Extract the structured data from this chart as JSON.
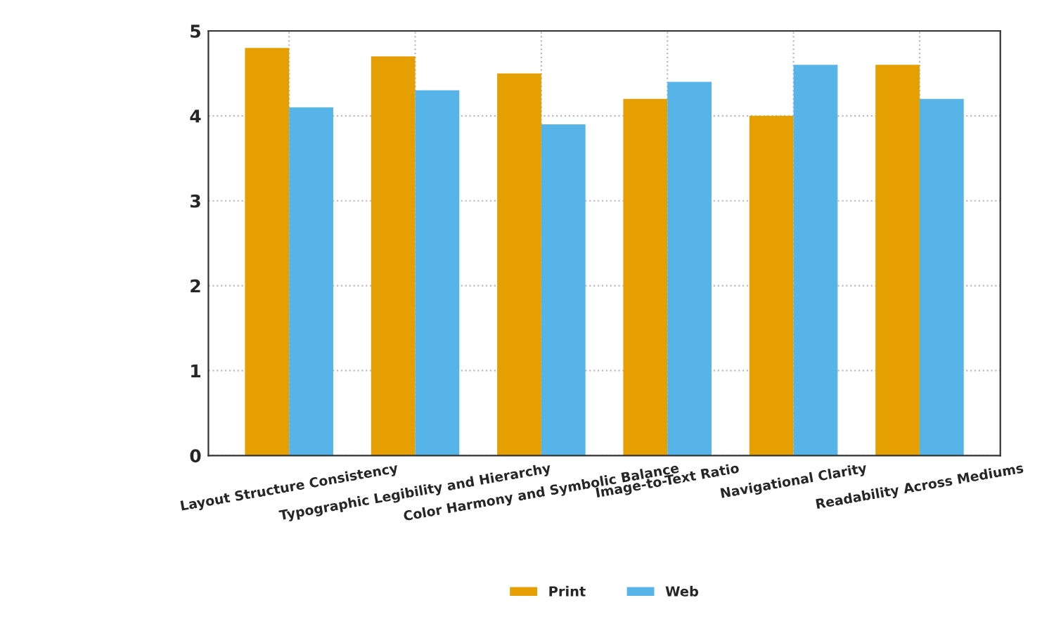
{
  "chart_data": {
    "type": "bar",
    "categories": [
      "Layout Structure Consistency",
      "Typographic Legibility and Hierarchy",
      "Color Harmony and Symbolic Balance",
      "Image-to-Text Ratio",
      "Navigational Clarity",
      "Readability Across Mediums"
    ],
    "series": [
      {
        "name": "Print",
        "color": "#e69f00",
        "values": [
          4.8,
          4.7,
          4.5,
          4.2,
          4.0,
          4.6
        ]
      },
      {
        "name": "Web",
        "color": "#56b4e9",
        "values": [
          4.1,
          4.3,
          3.9,
          4.4,
          4.6,
          4.2
        ]
      }
    ],
    "ylim": [
      0,
      5
    ],
    "yticks": [
      0,
      1,
      2,
      3,
      4,
      5
    ],
    "grid": true,
    "legend": "bottom"
  }
}
